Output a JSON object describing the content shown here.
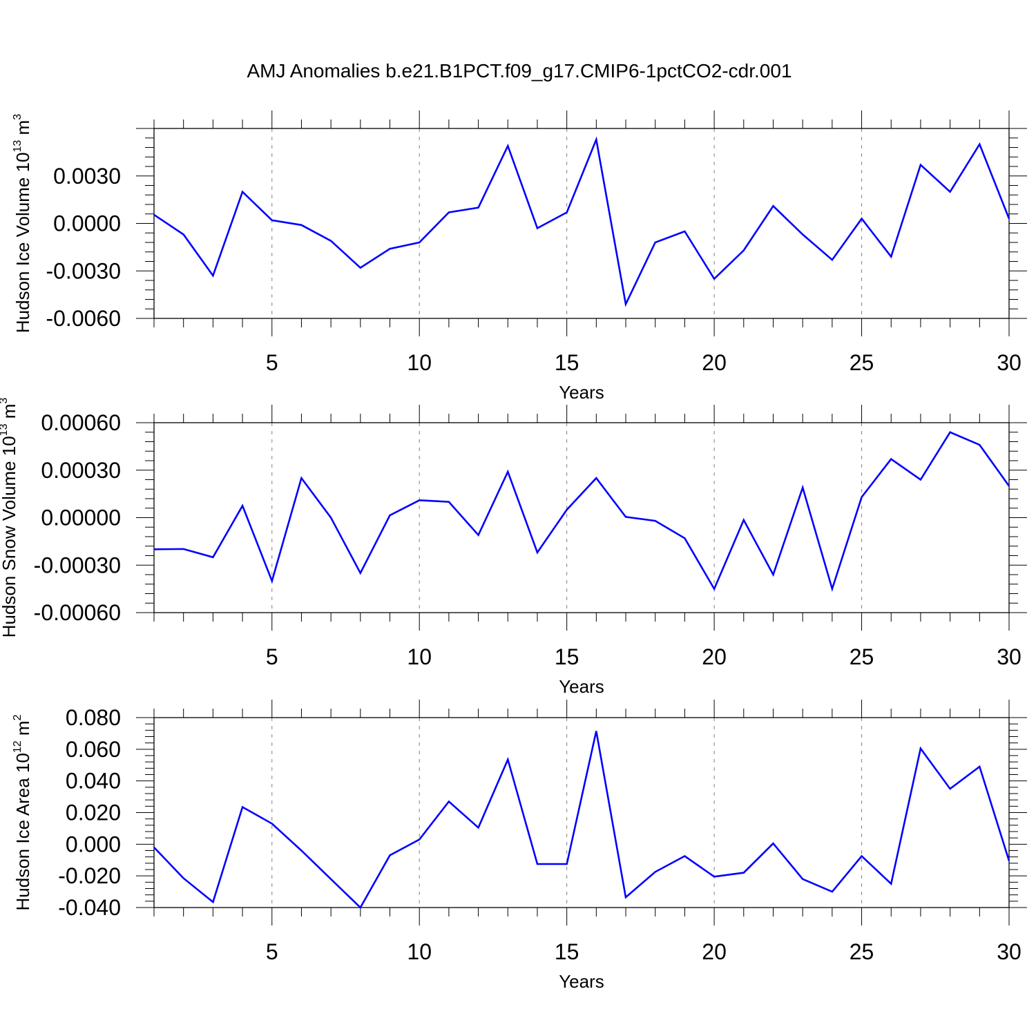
{
  "title": "AMJ Anomalies b.e21.B1PCT.f09_g17.CMIP6-1pctCO2-cdr.001",
  "colors": {
    "line": "#0000ff",
    "axes": "#000000",
    "grid": "#7f7f7f",
    "background": "#ffffff"
  },
  "chart_data": [
    {
      "type": "line",
      "ylabel": {
        "name": "Hudson Ice Volume",
        "base": "10",
        "exp": "13",
        "unit": "m",
        "unit_exp": "3"
      },
      "xlabel": "Years",
      "xlim": [
        1,
        30
      ],
      "ylim": [
        -0.006,
        0.006
      ],
      "x_ticks": [
        5,
        10,
        15,
        20,
        25,
        30
      ],
      "x_tick_labels": [
        "5",
        "10",
        "15",
        "20",
        "25",
        "30"
      ],
      "y_ticks": [
        -0.006,
        -0.003,
        0.0,
        0.003
      ],
      "y_tick_labels": [
        "-0.0060",
        "-0.0030",
        "0.0000",
        "0.0030"
      ],
      "grid": "vertical dashed",
      "x": [
        1,
        2,
        3,
        4,
        5,
        6,
        7,
        8,
        9,
        10,
        11,
        12,
        13,
        14,
        15,
        16,
        17,
        18,
        19,
        20,
        21,
        22,
        23,
        24,
        25,
        26,
        27,
        28,
        29,
        30
      ],
      "values": [
        0.00055,
        -0.0007,
        -0.0033,
        0.002,
        0.0002,
        -0.0001,
        -0.0011,
        -0.0028,
        -0.0016,
        -0.0012,
        0.0007,
        0.001,
        0.0049,
        -0.0003,
        0.0007,
        0.0053,
        -0.0051,
        -0.0012,
        -0.0005,
        -0.0035,
        -0.0017,
        0.0011,
        -0.0007,
        -0.0023,
        0.0003,
        -0.0021,
        0.0037,
        0.002,
        0.005,
        0.0003
      ]
    },
    {
      "type": "line",
      "ylabel": {
        "name": "Hudson Snow Volume",
        "base": "10",
        "exp": "13",
        "unit": "m",
        "unit_exp": "3"
      },
      "xlabel": "Years",
      "xlim": [
        1,
        30
      ],
      "ylim": [
        -0.0006,
        0.0006
      ],
      "x_ticks": [
        5,
        10,
        15,
        20,
        25,
        30
      ],
      "x_tick_labels": [
        "5",
        "10",
        "15",
        "20",
        "25",
        "30"
      ],
      "y_ticks": [
        -0.0006,
        -0.0003,
        0.0,
        0.0003,
        0.0006
      ],
      "y_tick_labels": [
        "-0.00060",
        "-0.00030",
        "0.00000",
        "0.00030",
        "0.00060"
      ],
      "grid": "vertical dashed",
      "x": [
        1,
        2,
        3,
        4,
        5,
        6,
        7,
        8,
        9,
        10,
        11,
        12,
        13,
        14,
        15,
        16,
        17,
        18,
        19,
        20,
        21,
        22,
        23,
        24,
        25,
        26,
        27,
        28,
        29,
        30
      ],
      "values": [
        -0.0002,
        -0.000198,
        -0.00025,
        7.5e-05,
        -0.0004,
        0.00025,
        0.0,
        -0.00035,
        1.5e-05,
        0.00011,
        0.0001,
        -0.00011,
        0.00029,
        -0.00022,
        5e-05,
        0.00025,
        5e-06,
        -2e-05,
        -0.00013,
        -0.00045,
        -1.5e-05,
        -0.00036,
        0.00019,
        -0.00045,
        0.00013,
        0.00037,
        0.00024,
        0.00054,
        0.00046,
        0.0002
      ]
    },
    {
      "type": "line",
      "ylabel": {
        "name": "Hudson Ice Area",
        "base": "10",
        "exp": "12",
        "unit": "m",
        "unit_exp": "2"
      },
      "xlabel": "Years",
      "xlim": [
        1,
        30
      ],
      "ylim": [
        -0.04,
        0.08
      ],
      "x_ticks": [
        5,
        10,
        15,
        20,
        25,
        30
      ],
      "x_tick_labels": [
        "5",
        "10",
        "15",
        "20",
        "25",
        "30"
      ],
      "y_ticks": [
        -0.04,
        -0.02,
        0.0,
        0.02,
        0.04,
        0.06,
        0.08
      ],
      "y_tick_labels": [
        "-0.040",
        "-0.020",
        "0.000",
        "0.020",
        "0.040",
        "0.060",
        "0.080"
      ],
      "grid": "vertical dashed",
      "x": [
        1,
        2,
        3,
        4,
        5,
        6,
        7,
        8,
        9,
        10,
        11,
        12,
        13,
        14,
        15,
        16,
        17,
        18,
        19,
        20,
        21,
        22,
        23,
        24,
        25,
        26,
        27,
        28,
        29,
        30
      ],
      "values": [
        -0.002,
        -0.0215,
        -0.0365,
        0.0235,
        0.013,
        -0.004,
        -0.022,
        -0.04,
        -0.007,
        0.003,
        0.027,
        0.0105,
        0.0535,
        -0.0125,
        -0.0125,
        0.0715,
        -0.0335,
        -0.0175,
        -0.0075,
        -0.0205,
        -0.018,
        0.0005,
        -0.022,
        -0.03,
        -0.0075,
        -0.025,
        0.0605,
        0.035,
        0.049,
        -0.0105
      ]
    }
  ]
}
